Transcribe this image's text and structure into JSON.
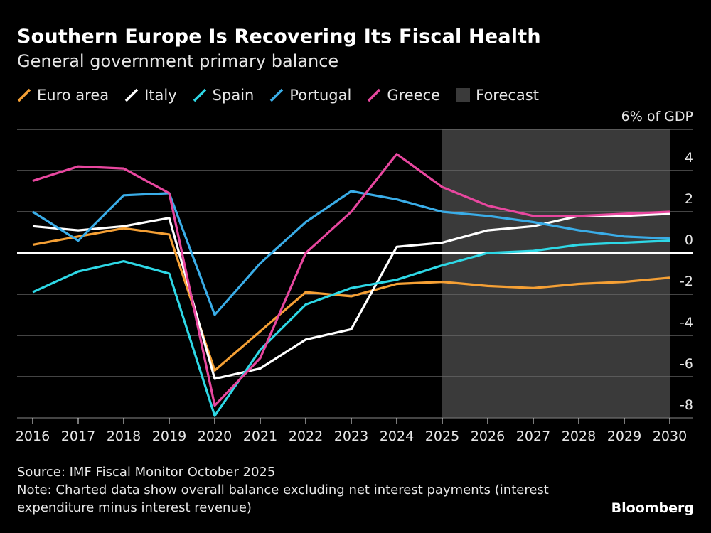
{
  "header": {
    "title": "Southern Europe Is Recovering Its Fiscal Health",
    "subtitle": "General government primary balance"
  },
  "footer": {
    "source": "Source: IMF Fiscal Monitor October 2025",
    "note_line1": "Note: Charted data show overall balance excluding net interest payments (interest",
    "note_line2": "expenditure minus interest revenue)",
    "brand": "Bloomberg"
  },
  "chart_data": {
    "type": "line",
    "title": "Southern Europe Is Recovering Its Fiscal Health",
    "subtitle": "General government primary balance",
    "ylabel": "% of GDP",
    "x": [
      2016,
      2017,
      2018,
      2019,
      2020,
      2021,
      2022,
      2023,
      2024,
      2025,
      2026,
      2027,
      2028,
      2029,
      2030
    ],
    "ylim": [
      -8,
      6
    ],
    "yticks": [
      -8,
      -6,
      -4,
      -2,
      0,
      2,
      4,
      6
    ],
    "ytick_labels": [
      "-8",
      "-6",
      "-4",
      "-2",
      "0",
      "2",
      "4",
      "6% of GDP"
    ],
    "grid": true,
    "legend_position": "top-left",
    "forecast": {
      "label": "Forecast",
      "from": 2025,
      "to": 2030,
      "color": "#3a3a3a"
    },
    "series": [
      {
        "name": "Euro area",
        "color": "#f5a035",
        "values": [
          0.4,
          0.8,
          1.2,
          0.9,
          -5.7,
          -3.8,
          -1.9,
          -2.1,
          -1.5,
          -1.4,
          -1.6,
          -1.7,
          -1.5,
          -1.4,
          -1.2
        ]
      },
      {
        "name": "Italy",
        "color": "#ffffff",
        "values": [
          1.3,
          1.1,
          1.3,
          1.7,
          -6.1,
          -5.6,
          -4.2,
          -3.7,
          0.3,
          0.5,
          1.1,
          1.3,
          1.8,
          1.8,
          1.9
        ]
      },
      {
        "name": "Spain",
        "color": "#2ed8e6",
        "values": [
          -1.9,
          -0.9,
          -0.4,
          -1.0,
          -7.9,
          -4.7,
          -2.5,
          -1.7,
          -1.3,
          -0.6,
          0.0,
          0.1,
          0.4,
          0.5,
          0.6
        ]
      },
      {
        "name": "Portugal",
        "color": "#3aade8",
        "values": [
          2.0,
          0.6,
          2.8,
          2.9,
          -3.0,
          -0.5,
          1.5,
          3.0,
          2.6,
          2.0,
          1.8,
          1.5,
          1.1,
          0.8,
          0.7
        ]
      },
      {
        "name": "Greece",
        "color": "#e8479f",
        "values": [
          3.5,
          4.2,
          4.1,
          2.9,
          -7.4,
          -5.1,
          0.0,
          2.0,
          4.8,
          3.2,
          2.3,
          1.8,
          1.8,
          1.9,
          2.0
        ]
      }
    ]
  }
}
